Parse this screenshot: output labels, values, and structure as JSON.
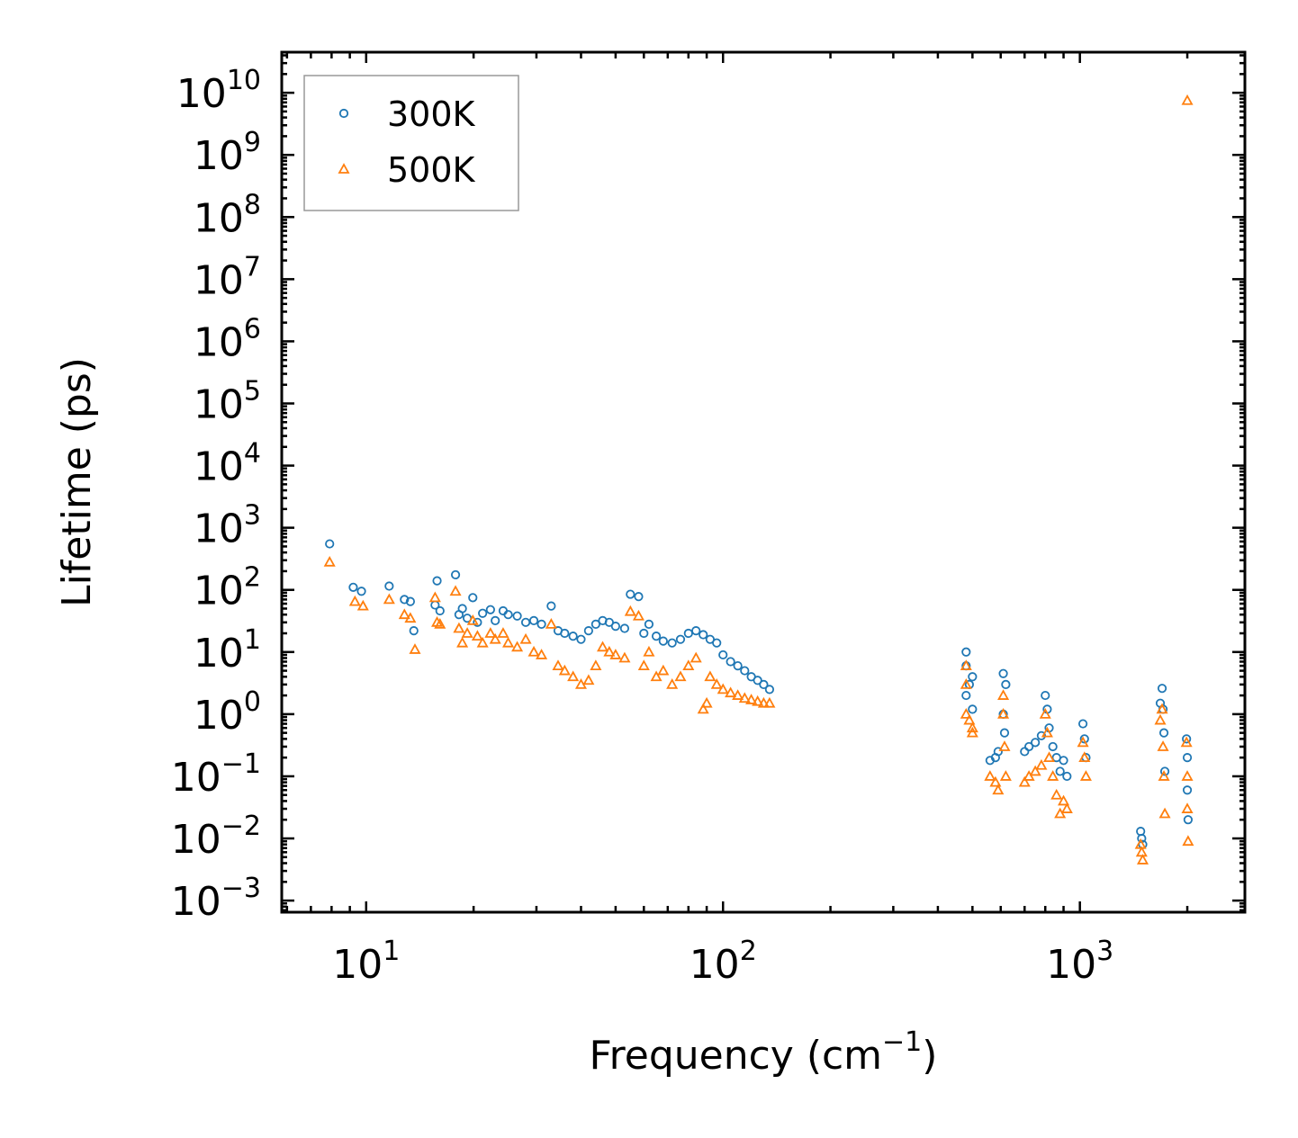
{
  "chart_data": {
    "type": "scatter",
    "title": "",
    "xlabel": "Frequency (cm",
    "xlabel_sup": "−1",
    "xlabel_tail": ")",
    "ylabel": "Lifetime (ps)",
    "xscale": "log",
    "yscale": "log",
    "xlim": [
      5.8,
      2900
    ],
    "ylim": [
      0.00065,
      45000000000
    ],
    "legend_position": "top-left",
    "x_ticks": [
      {
        "base": "10",
        "exp": "1",
        "value": 10
      },
      {
        "base": "10",
        "exp": "2",
        "value": 100
      },
      {
        "base": "10",
        "exp": "3",
        "value": 1000
      }
    ],
    "y_ticks": [
      {
        "base": "10",
        "exp": "10",
        "value": 10000000000.0
      },
      {
        "base": "10",
        "exp": "9",
        "value": 1000000000.0
      },
      {
        "base": "10",
        "exp": "8",
        "value": 100000000.0
      },
      {
        "base": "10",
        "exp": "7",
        "value": 10000000.0
      },
      {
        "base": "10",
        "exp": "6",
        "value": 1000000.0
      },
      {
        "base": "10",
        "exp": "5",
        "value": 100000.0
      },
      {
        "base": "10",
        "exp": "4",
        "value": 10000.0
      },
      {
        "base": "10",
        "exp": "3",
        "value": 1000.0
      },
      {
        "base": "10",
        "exp": "2",
        "value": 100.0
      },
      {
        "base": "10",
        "exp": "1",
        "value": 10.0
      },
      {
        "base": "10",
        "exp": "0",
        "value": 1
      },
      {
        "base": "10",
        "exp": "−1",
        "value": 0.1
      },
      {
        "base": "10",
        "exp": "−2",
        "value": 0.01
      },
      {
        "base": "10",
        "exp": "−3",
        "value": 0.001
      }
    ],
    "series": [
      {
        "name": "300K",
        "marker": "circle",
        "color": "#1f77b4",
        "points": [
          [
            7.9,
            550
          ],
          [
            9.2,
            110
          ],
          [
            9.7,
            95
          ],
          [
            11.6,
            115
          ],
          [
            12.8,
            70
          ],
          [
            13.3,
            65
          ],
          [
            13.6,
            22
          ],
          [
            15.6,
            57
          ],
          [
            15.8,
            140
          ],
          [
            16.1,
            46
          ],
          [
            17.8,
            175
          ],
          [
            18.2,
            40
          ],
          [
            18.6,
            50
          ],
          [
            19.2,
            35
          ],
          [
            19.9,
            75
          ],
          [
            20.5,
            30
          ],
          [
            21.2,
            42
          ],
          [
            22.3,
            48
          ],
          [
            23.0,
            32
          ],
          [
            24.2,
            46
          ],
          [
            25.0,
            40
          ],
          [
            26.5,
            38
          ],
          [
            28.0,
            30
          ],
          [
            29.5,
            32
          ],
          [
            31.0,
            28
          ],
          [
            33.0,
            55
          ],
          [
            34.5,
            22
          ],
          [
            36.0,
            20
          ],
          [
            38.0,
            18
          ],
          [
            40.0,
            16
          ],
          [
            42.0,
            22
          ],
          [
            44.0,
            28
          ],
          [
            46.0,
            32
          ],
          [
            48.0,
            30
          ],
          [
            50.0,
            26
          ],
          [
            53.0,
            24
          ],
          [
            55.0,
            85
          ],
          [
            58.0,
            78
          ],
          [
            60.0,
            20
          ],
          [
            62.0,
            28
          ],
          [
            65.0,
            18
          ],
          [
            68.0,
            15
          ],
          [
            72.0,
            14
          ],
          [
            76.0,
            16
          ],
          [
            80.0,
            20
          ],
          [
            84.0,
            22
          ],
          [
            88.0,
            19
          ],
          [
            92.0,
            16
          ],
          [
            96.0,
            14
          ],
          [
            100.0,
            9
          ],
          [
            105.0,
            7
          ],
          [
            110.0,
            6
          ],
          [
            115.0,
            5
          ],
          [
            120.0,
            4
          ],
          [
            125.0,
            3.5
          ],
          [
            130.0,
            3
          ],
          [
            135.0,
            2.5
          ],
          [
            480,
            10
          ],
          [
            480,
            6
          ],
          [
            480,
            2
          ],
          [
            490,
            3
          ],
          [
            500,
            4
          ],
          [
            500,
            1.2
          ],
          [
            560,
            0.18
          ],
          [
            580,
            0.2
          ],
          [
            590,
            0.25
          ],
          [
            610,
            4.5
          ],
          [
            610,
            1
          ],
          [
            615,
            0.5
          ],
          [
            620,
            3
          ],
          [
            700,
            0.25
          ],
          [
            720,
            0.3
          ],
          [
            750,
            0.35
          ],
          [
            780,
            0.45
          ],
          [
            800,
            2
          ],
          [
            810,
            1.2
          ],
          [
            820,
            0.6
          ],
          [
            840,
            0.3
          ],
          [
            860,
            0.2
          ],
          [
            880,
            0.12
          ],
          [
            900,
            0.18
          ],
          [
            920,
            0.1
          ],
          [
            1020,
            0.7
          ],
          [
            1030,
            0.4
          ],
          [
            1040,
            0.2
          ],
          [
            1480,
            0.013
          ],
          [
            1490,
            0.01
          ],
          [
            1500,
            0.008
          ],
          [
            1680,
            1.5
          ],
          [
            1700,
            2.6
          ],
          [
            1710,
            1.2
          ],
          [
            1720,
            0.5
          ],
          [
            1730,
            0.12
          ],
          [
            1990,
            0.4
          ],
          [
            2000,
            0.2
          ],
          [
            2000,
            0.06
          ],
          [
            2010,
            0.02
          ]
        ]
      },
      {
        "name": "500K",
        "marker": "triangle",
        "color": "#ff7f0e",
        "points": [
          [
            7.9,
            280
          ],
          [
            9.3,
            65
          ],
          [
            9.8,
            55
          ],
          [
            11.6,
            70
          ],
          [
            12.8,
            40
          ],
          [
            13.3,
            35
          ],
          [
            13.7,
            11
          ],
          [
            15.6,
            75
          ],
          [
            15.8,
            30
          ],
          [
            16.1,
            28
          ],
          [
            17.8,
            95
          ],
          [
            18.2,
            24
          ],
          [
            18.6,
            14
          ],
          [
            19.2,
            20
          ],
          [
            19.9,
            32
          ],
          [
            20.5,
            18
          ],
          [
            21.2,
            14
          ],
          [
            22.3,
            20
          ],
          [
            23.0,
            16
          ],
          [
            24.2,
            20
          ],
          [
            25.0,
            14
          ],
          [
            26.5,
            12
          ],
          [
            28.0,
            16
          ],
          [
            29.5,
            10
          ],
          [
            31.0,
            9
          ],
          [
            33.0,
            28
          ],
          [
            34.5,
            6
          ],
          [
            36.0,
            5
          ],
          [
            38.0,
            4
          ],
          [
            40.0,
            3
          ],
          [
            42.0,
            3.5
          ],
          [
            44.0,
            6
          ],
          [
            46.0,
            12
          ],
          [
            48.0,
            10
          ],
          [
            50.0,
            9
          ],
          [
            53.0,
            8
          ],
          [
            55.0,
            45
          ],
          [
            58.0,
            38
          ],
          [
            60.0,
            6
          ],
          [
            62.0,
            10
          ],
          [
            65.0,
            4
          ],
          [
            68.0,
            5
          ],
          [
            72.0,
            3
          ],
          [
            76.0,
            4
          ],
          [
            80.0,
            6
          ],
          [
            84.0,
            8
          ],
          [
            88.0,
            1.2
          ],
          [
            90.0,
            1.5
          ],
          [
            92.0,
            4
          ],
          [
            96.0,
            3
          ],
          [
            100.0,
            2.5
          ],
          [
            105.0,
            2.2
          ],
          [
            110.0,
            2
          ],
          [
            115.0,
            1.8
          ],
          [
            120.0,
            1.7
          ],
          [
            125.0,
            1.6
          ],
          [
            130.0,
            1.5
          ],
          [
            135.0,
            1.5
          ],
          [
            480,
            6
          ],
          [
            480,
            3
          ],
          [
            480,
            1
          ],
          [
            490,
            0.8
          ],
          [
            500,
            0.6
          ],
          [
            500,
            0.5
          ],
          [
            560,
            0.1
          ],
          [
            580,
            0.08
          ],
          [
            590,
            0.06
          ],
          [
            610,
            2
          ],
          [
            610,
            1
          ],
          [
            615,
            0.3
          ],
          [
            620,
            0.1
          ],
          [
            700,
            0.08
          ],
          [
            720,
            0.1
          ],
          [
            750,
            0.12
          ],
          [
            780,
            0.15
          ],
          [
            800,
            1
          ],
          [
            810,
            0.5
          ],
          [
            820,
            0.2
          ],
          [
            840,
            0.1
          ],
          [
            860,
            0.05
          ],
          [
            880,
            0.025
          ],
          [
            900,
            0.04
          ],
          [
            920,
            0.03
          ],
          [
            1020,
            0.35
          ],
          [
            1030,
            0.2
          ],
          [
            1040,
            0.1
          ],
          [
            1480,
            0.008
          ],
          [
            1490,
            0.006
          ],
          [
            1500,
            0.0045
          ],
          [
            1680,
            0.8
          ],
          [
            1700,
            1.2
          ],
          [
            1710,
            0.3
          ],
          [
            1720,
            0.1
          ],
          [
            1730,
            0.025
          ],
          [
            1990,
            0.35
          ],
          [
            2000,
            0.1
          ],
          [
            2000,
            0.03
          ],
          [
            2010,
            0.009
          ],
          [
            2000,
            7500000000.0
          ]
        ]
      }
    ]
  }
}
